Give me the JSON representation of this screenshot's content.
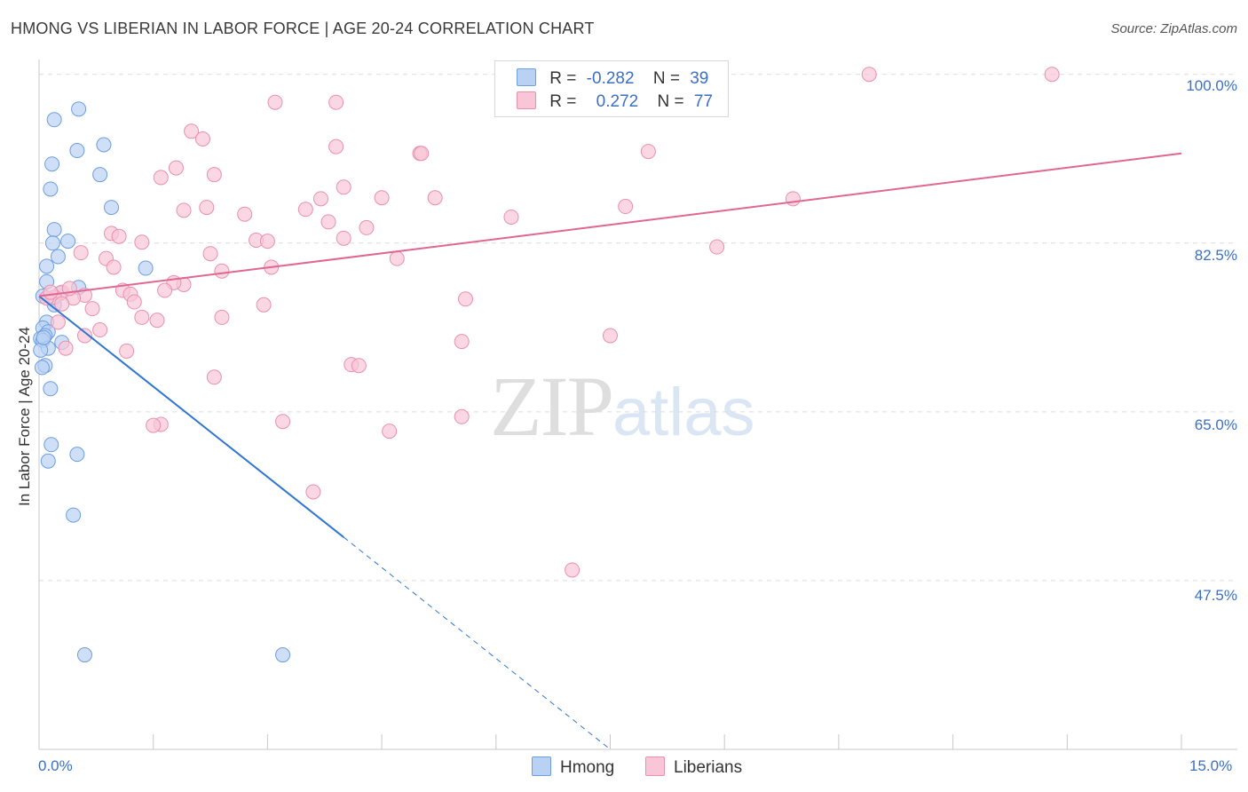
{
  "title": "HMONG VS LIBERIAN IN LABOR FORCE | AGE 20-24 CORRELATION CHART",
  "source": "Source: ZipAtlas.com",
  "legend": {
    "row1": {
      "r_label": "R =",
      "r_value": "-0.282",
      "n_label": "N =",
      "n_value": "39"
    },
    "row2": {
      "r_label": "R =",
      "r_value": "0.272",
      "n_label": "N =",
      "n_value": "77"
    }
  },
  "bottom_legend": {
    "hmong": "Hmong",
    "liberians": "Liberians"
  },
  "watermark": {
    "zip": "ZIP",
    "atlas": "atlas"
  },
  "colors": {
    "hmong_fill": "#b9d1f3",
    "hmong_stroke": "#6d9ee0",
    "hmong_line": "#2f75d1",
    "lib_fill": "#f8c6d6",
    "lib_stroke": "#eb8fb0",
    "lib_line": "#e06792",
    "tick_text": "#3b6fc4"
  },
  "chart_data": {
    "type": "scatter",
    "xlabel": "",
    "ylabel": "In Labor Force | Age 20-24",
    "xlim": [
      0,
      15
    ],
    "ylim": [
      30,
      102
    ],
    "x_tick_labels": [
      "0.0%",
      "15.0%"
    ],
    "y_ticks": [
      100,
      82.5,
      65,
      47.5
    ],
    "y_tick_labels": [
      "100.0%",
      "82.5%",
      "65.0%",
      "47.5%"
    ],
    "grid": true,
    "legend_position": "top-center",
    "series": [
      {
        "name": "Hmong",
        "points": [
          [
            0.2,
            95.3
          ],
          [
            0.52,
            96.4
          ],
          [
            0.5,
            92.1
          ],
          [
            0.85,
            92.7
          ],
          [
            0.17,
            90.7
          ],
          [
            0.8,
            89.6
          ],
          [
            0.15,
            88.1
          ],
          [
            0.95,
            86.2
          ],
          [
            0.2,
            83.9
          ],
          [
            0.38,
            82.7
          ],
          [
            0.18,
            82.5
          ],
          [
            0.25,
            81.1
          ],
          [
            0.1,
            80.1
          ],
          [
            1.4,
            79.9
          ],
          [
            0.1,
            78.5
          ],
          [
            0.52,
            77.9
          ],
          [
            0.05,
            77.0
          ],
          [
            0.18,
            76.8
          ],
          [
            0.28,
            77.3
          ],
          [
            0.2,
            76.1
          ],
          [
            0.1,
            74.3
          ],
          [
            0.05,
            73.7
          ],
          [
            0.12,
            73.3
          ],
          [
            0.08,
            72.9
          ],
          [
            0.02,
            72.6
          ],
          [
            0.05,
            72.4
          ],
          [
            0.3,
            72.2
          ],
          [
            0.12,
            71.6
          ],
          [
            0.02,
            71.4
          ],
          [
            0.08,
            69.8
          ],
          [
            0.04,
            69.6
          ],
          [
            0.15,
            67.4
          ],
          [
            0.16,
            61.6
          ],
          [
            0.5,
            60.6
          ],
          [
            0.12,
            59.9
          ],
          [
            0.45,
            54.3
          ],
          [
            0.6,
            39.8
          ],
          [
            3.2,
            39.8
          ],
          [
            0.06,
            72.7
          ]
        ]
      },
      {
        "name": "Liberians",
        "points": [
          [
            10.9,
            100.0
          ],
          [
            13.3,
            100.0
          ],
          [
            3.1,
            97.1
          ],
          [
            3.9,
            97.1
          ],
          [
            2.0,
            94.1
          ],
          [
            2.15,
            93.3
          ],
          [
            3.9,
            92.5
          ],
          [
            5.0,
            91.8
          ],
          [
            5.02,
            91.8
          ],
          [
            8.0,
            92.0
          ],
          [
            1.8,
            90.3
          ],
          [
            2.3,
            89.6
          ],
          [
            1.6,
            89.3
          ],
          [
            4.0,
            88.3
          ],
          [
            3.7,
            87.1
          ],
          [
            4.5,
            87.2
          ],
          [
            5.2,
            87.2
          ],
          [
            9.9,
            87.1
          ],
          [
            1.9,
            85.9
          ],
          [
            2.2,
            86.2
          ],
          [
            3.5,
            86.0
          ],
          [
            2.7,
            85.5
          ],
          [
            3.8,
            84.7
          ],
          [
            6.2,
            85.2
          ],
          [
            7.7,
            86.3
          ],
          [
            4.3,
            84.1
          ],
          [
            0.95,
            83.5
          ],
          [
            1.05,
            83.2
          ],
          [
            4.0,
            83.0
          ],
          [
            2.85,
            82.8
          ],
          [
            3.0,
            82.7
          ],
          [
            1.35,
            82.6
          ],
          [
            8.9,
            82.1
          ],
          [
            0.55,
            81.5
          ],
          [
            2.25,
            81.4
          ],
          [
            4.7,
            80.9
          ],
          [
            0.88,
            80.9
          ],
          [
            0.98,
            80.0
          ],
          [
            3.05,
            80.0
          ],
          [
            2.4,
            79.6
          ],
          [
            1.9,
            78.2
          ],
          [
            1.77,
            78.4
          ],
          [
            1.65,
            77.6
          ],
          [
            1.1,
            77.6
          ],
          [
            1.2,
            77.2
          ],
          [
            0.6,
            77.1
          ],
          [
            0.3,
            77.4
          ],
          [
            0.45,
            76.8
          ],
          [
            5.6,
            76.7
          ],
          [
            0.2,
            76.9
          ],
          [
            0.1,
            76.8
          ],
          [
            0.3,
            76.2
          ],
          [
            1.25,
            76.4
          ],
          [
            2.95,
            76.1
          ],
          [
            0.7,
            75.7
          ],
          [
            2.4,
            74.8
          ],
          [
            1.35,
            74.8
          ],
          [
            1.55,
            74.5
          ],
          [
            0.25,
            74.3
          ],
          [
            0.8,
            73.5
          ],
          [
            7.5,
            72.9
          ],
          [
            0.6,
            72.9
          ],
          [
            5.55,
            72.3
          ],
          [
            1.15,
            71.3
          ],
          [
            0.35,
            71.6
          ],
          [
            4.1,
            69.9
          ],
          [
            4.2,
            69.8
          ],
          [
            2.3,
            68.6
          ],
          [
            5.55,
            64.5
          ],
          [
            3.2,
            64.0
          ],
          [
            1.6,
            63.7
          ],
          [
            1.5,
            63.6
          ],
          [
            4.6,
            63.0
          ],
          [
            3.6,
            56.7
          ],
          [
            7.0,
            48.6
          ],
          [
            0.15,
            77.4
          ],
          [
            0.4,
            77.8
          ]
        ]
      }
    ],
    "trendlines": [
      {
        "series": "Hmong",
        "x": [
          0,
          4.0
        ],
        "y": [
          77.0,
          52.0
        ],
        "dashed_extension_x": [
          4.0,
          7.5
        ],
        "dashed_extension_y": [
          52.0,
          30.0
        ]
      },
      {
        "series": "Liberians",
        "x": [
          0,
          15
        ],
        "y": [
          77.0,
          91.8
        ]
      }
    ]
  }
}
